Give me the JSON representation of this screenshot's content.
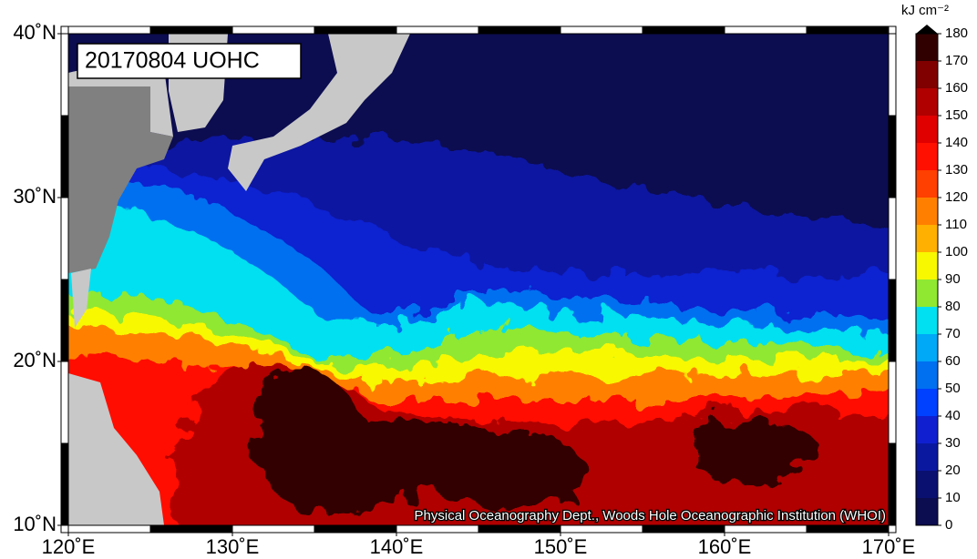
{
  "map": {
    "title": "20170804 UOHC",
    "credit": "Physical Oceanography Dept., Woods Hole Oceanographic Institution (WHOI)",
    "lon_range": [
      120,
      170
    ],
    "lat_range": [
      10,
      40
    ],
    "lon_ticks": [
      {
        "value": 120,
        "label": "120˚E"
      },
      {
        "value": 130,
        "label": "130˚E"
      },
      {
        "value": 140,
        "label": "140˚E"
      },
      {
        "value": 150,
        "label": "150˚E"
      },
      {
        "value": 160,
        "label": "160˚E"
      },
      {
        "value": 170,
        "label": "170˚E"
      }
    ],
    "lat_ticks": [
      {
        "value": 10,
        "label": "10˚N"
      },
      {
        "value": 20,
        "label": "20˚N"
      },
      {
        "value": 30,
        "label": "30˚N"
      },
      {
        "value": 40,
        "label": "40˚N"
      }
    ]
  },
  "colorbar": {
    "unit": "kJ cm⁻²",
    "ylim": [
      0,
      180
    ],
    "ticks": [
      0,
      10,
      20,
      30,
      40,
      50,
      60,
      70,
      80,
      90,
      100,
      110,
      120,
      130,
      140,
      150,
      160,
      170,
      180
    ],
    "colors": [
      "#0c0c50",
      "#0a1070",
      "#0a18a0",
      "#1020d0",
      "#0040ff",
      "#0070f0",
      "#00a8f8",
      "#00e0f0",
      "#90e830",
      "#f8f800",
      "#ffb000",
      "#ff8000",
      "#ff4000",
      "#ff1000",
      "#e00000",
      "#b00000",
      "#800000",
      "#300000"
    ],
    "overflow_color": "#000000"
  }
}
